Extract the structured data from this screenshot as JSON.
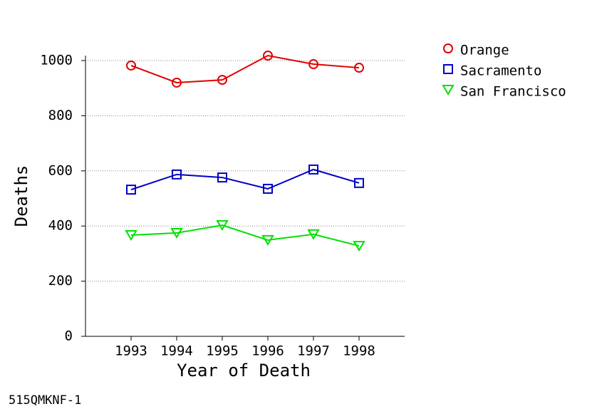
{
  "chart_data": {
    "type": "line",
    "x_label": "Year of Death",
    "y_label": "Deaths",
    "footnote": "515QMKNF-1",
    "x": [
      1993,
      1994,
      1995,
      1996,
      1997,
      1998
    ],
    "series": [
      {
        "name": "Orange",
        "color": "#e00000",
        "marker": "circle",
        "values": [
          982,
          920,
          930,
          1018,
          987,
          974
        ]
      },
      {
        "name": "Sacramento",
        "color": "#0000c8",
        "marker": "square",
        "values": [
          532,
          587,
          576,
          535,
          605,
          556
        ]
      },
      {
        "name": "San Francisco",
        "color": "#00e000",
        "marker": "triangle-down",
        "values": [
          367,
          375,
          403,
          349,
          370,
          328
        ]
      }
    ],
    "xlim": [
      1992,
      1999
    ],
    "xticks": [
      1993,
      1994,
      1995,
      1996,
      1997,
      1998
    ],
    "ylim": [
      0,
      1000
    ],
    "yticks": [
      0,
      200,
      400,
      600,
      800,
      1000
    ],
    "grid": true,
    "legend": "right"
  }
}
